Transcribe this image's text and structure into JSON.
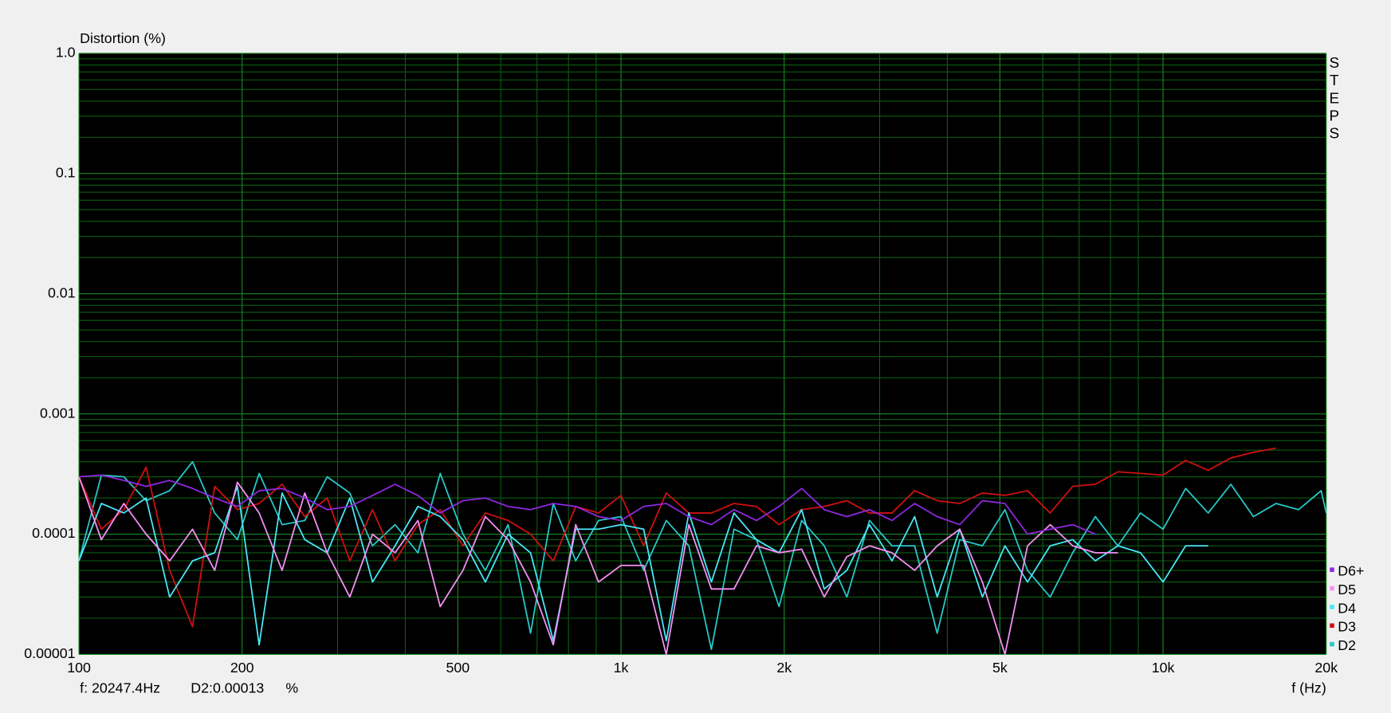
{
  "chart_data": {
    "type": "line",
    "title": "Distortion (%)",
    "x_label": "f (Hz)",
    "side_label": "STEPS",
    "status": {
      "frequency": "f: 20247.4Hz",
      "reading": "D2:0.00013",
      "unit": "%"
    },
    "xlog": true,
    "ylog": true,
    "grid": true,
    "legend": "right",
    "xlim": [
      100,
      20000
    ],
    "ylim": [
      1e-05,
      1
    ],
    "xticks": [
      100,
      200,
      500,
      {
        "value": 1000,
        "label": "1k"
      },
      {
        "value": 2000,
        "label": "2k"
      },
      {
        "value": 5000,
        "label": "5k"
      },
      {
        "value": 10000,
        "label": "10k"
      },
      {
        "value": 20000,
        "label": "20k"
      }
    ],
    "x_minor_ticks": [
      300,
      400,
      600,
      700,
      800,
      900,
      3000,
      4000,
      6000,
      7000,
      8000,
      9000
    ],
    "yticks": [
      {
        "value": 1,
        "label": "1.0"
      },
      0.1,
      0.01,
      0.001,
      0.0001,
      1e-05
    ],
    "y_minor_ticks": [
      2e-05,
      3e-05,
      4e-05,
      5e-05,
      6e-05,
      7e-05,
      8e-05,
      9e-05,
      0.0002,
      0.0003,
      0.0004,
      0.0005,
      0.0006,
      0.0007,
      0.0008,
      0.0009,
      0.002,
      0.003,
      0.004,
      0.005,
      0.006,
      0.007,
      0.008,
      0.009,
      0.02,
      0.03,
      0.04,
      0.05,
      0.06,
      0.07,
      0.08,
      0.09,
      0.2,
      0.3,
      0.4,
      0.5,
      0.6,
      0.7,
      0.8,
      0.9
    ],
    "x": [
      100,
      110,
      121,
      133,
      147,
      162,
      178,
      196,
      215,
      237,
      261,
      287,
      316,
      348,
      383,
      422,
      464,
      511,
      562,
      619,
      681,
      750,
      825,
      909,
      1000,
      1101,
      1212,
      1334,
      1468,
      1616,
      1778,
      1957,
      2154,
      2371,
      2610,
      2873,
      3162,
      3481,
      3831,
      4217,
      4642,
      5109,
      5623,
      6190,
      6813,
      7499,
      8254,
      9085,
      10000,
      11007,
      12115,
      13335,
      14678,
      16156,
      17783,
      19573,
      20000
    ],
    "series": [
      {
        "name": "D6+",
        "color": "#9028e0",
        "values": [
          0.0003,
          0.00031,
          0.00028,
          0.00025,
          0.00028,
          0.00024,
          0.0002,
          0.00017,
          0.00023,
          0.00024,
          0.0002,
          0.00016,
          0.00017,
          0.00021,
          0.00026,
          0.00021,
          0.00015,
          0.00019,
          0.0002,
          0.00017,
          0.00016,
          0.00018,
          0.00017,
          0.00014,
          0.00013,
          0.00017,
          0.00018,
          0.00014,
          0.00012,
          0.00016,
          0.00013,
          0.00017,
          0.00024,
          0.00016,
          0.00014,
          0.00016,
          0.00013,
          0.00018,
          0.00014,
          0.00012,
          0.00019,
          0.00018,
          0.0001,
          0.00011,
          0.00012,
          0.0001,
          null,
          null,
          null,
          null,
          null,
          null,
          null,
          null,
          null,
          null,
          null
        ]
      },
      {
        "name": "D5",
        "color": "#f590f5",
        "values": [
          0.0003,
          9e-05,
          0.00018,
          0.0001,
          6e-05,
          0.00011,
          5e-05,
          0.00027,
          0.00015,
          5e-05,
          0.00022,
          7e-05,
          3e-05,
          0.0001,
          7e-05,
          0.00013,
          2.5e-05,
          5e-05,
          0.00014,
          9e-05,
          4e-05,
          1.2e-05,
          0.00012,
          4e-05,
          5.5e-05,
          5.5e-05,
          1e-05,
          0.00012,
          3.5e-05,
          3.5e-05,
          8e-05,
          7e-05,
          7.5e-05,
          3e-05,
          6.5e-05,
          8e-05,
          7e-05,
          5e-05,
          8e-05,
          0.00011,
          4e-05,
          1e-05,
          8e-05,
          0.00012,
          8e-05,
          7e-05,
          7e-05,
          null,
          null,
          null,
          null,
          null,
          null,
          null,
          null,
          null,
          null
        ]
      },
      {
        "name": "D4",
        "color": "#48e8f8",
        "values": [
          6e-05,
          0.00018,
          0.00015,
          0.0002,
          3e-05,
          6e-05,
          7e-05,
          0.00025,
          1.2e-05,
          0.00022,
          9e-05,
          7e-05,
          0.0002,
          4e-05,
          8e-05,
          0.00017,
          0.00014,
          9e-05,
          4e-05,
          0.0001,
          7e-05,
          1.3e-05,
          0.00011,
          0.00011,
          0.00012,
          0.00011,
          1.3e-05,
          0.00015,
          4e-05,
          0.00015,
          9e-05,
          7e-05,
          0.00016,
          3.5e-05,
          5e-05,
          0.00012,
          6e-05,
          0.00014,
          3e-05,
          0.00011,
          3e-05,
          8e-05,
          4e-05,
          8e-05,
          9e-05,
          6e-05,
          8e-05,
          7e-05,
          4e-05,
          8e-05,
          8e-05,
          null,
          null,
          null,
          null,
          null,
          null
        ]
      },
      {
        "name": "D3",
        "color": "#d01010",
        "values": [
          0.0003,
          0.00011,
          0.00016,
          0.00036,
          5e-05,
          1.7e-05,
          0.00025,
          0.00016,
          0.00018,
          0.00026,
          0.00014,
          0.0002,
          6e-05,
          0.00016,
          6e-05,
          0.00012,
          0.00016,
          8e-05,
          0.00015,
          0.00013,
          0.0001,
          6e-05,
          0.00017,
          0.00015,
          0.00021,
          8e-05,
          0.00022,
          0.00015,
          0.00015,
          0.00018,
          0.00017,
          0.00012,
          0.00016,
          0.00017,
          0.00019,
          0.00015,
          0.00015,
          0.00023,
          0.00019,
          0.00018,
          0.00022,
          0.00021,
          0.00023,
          0.00015,
          0.00025,
          0.00026,
          0.00033,
          0.00032,
          0.00031,
          0.00041,
          0.00034,
          0.00043,
          0.00048,
          0.00052,
          null,
          null,
          null
        ]
      },
      {
        "name": "D2",
        "color": "#28c8c8",
        "values": [
          6e-05,
          0.00031,
          0.0003,
          0.00019,
          0.00023,
          0.0004,
          0.00015,
          9e-05,
          0.00032,
          0.00012,
          0.00013,
          0.0003,
          0.00022,
          8e-05,
          0.00012,
          7e-05,
          0.00032,
          0.0001,
          5e-05,
          0.00012,
          1.5e-05,
          0.00018,
          6e-05,
          0.00013,
          0.00014,
          5e-05,
          0.00013,
          8e-05,
          1.1e-05,
          0.00011,
          9e-05,
          2.5e-05,
          0.00013,
          8e-05,
          3e-05,
          0.00013,
          8e-05,
          8e-05,
          1.5e-05,
          9e-05,
          8e-05,
          0.00016,
          5e-05,
          3e-05,
          7e-05,
          0.00014,
          8e-05,
          0.00015,
          0.00011,
          0.00024,
          0.00015,
          0.00026,
          0.00014,
          0.00018,
          0.00016,
          0.00023,
          0.00015
        ]
      }
    ]
  }
}
